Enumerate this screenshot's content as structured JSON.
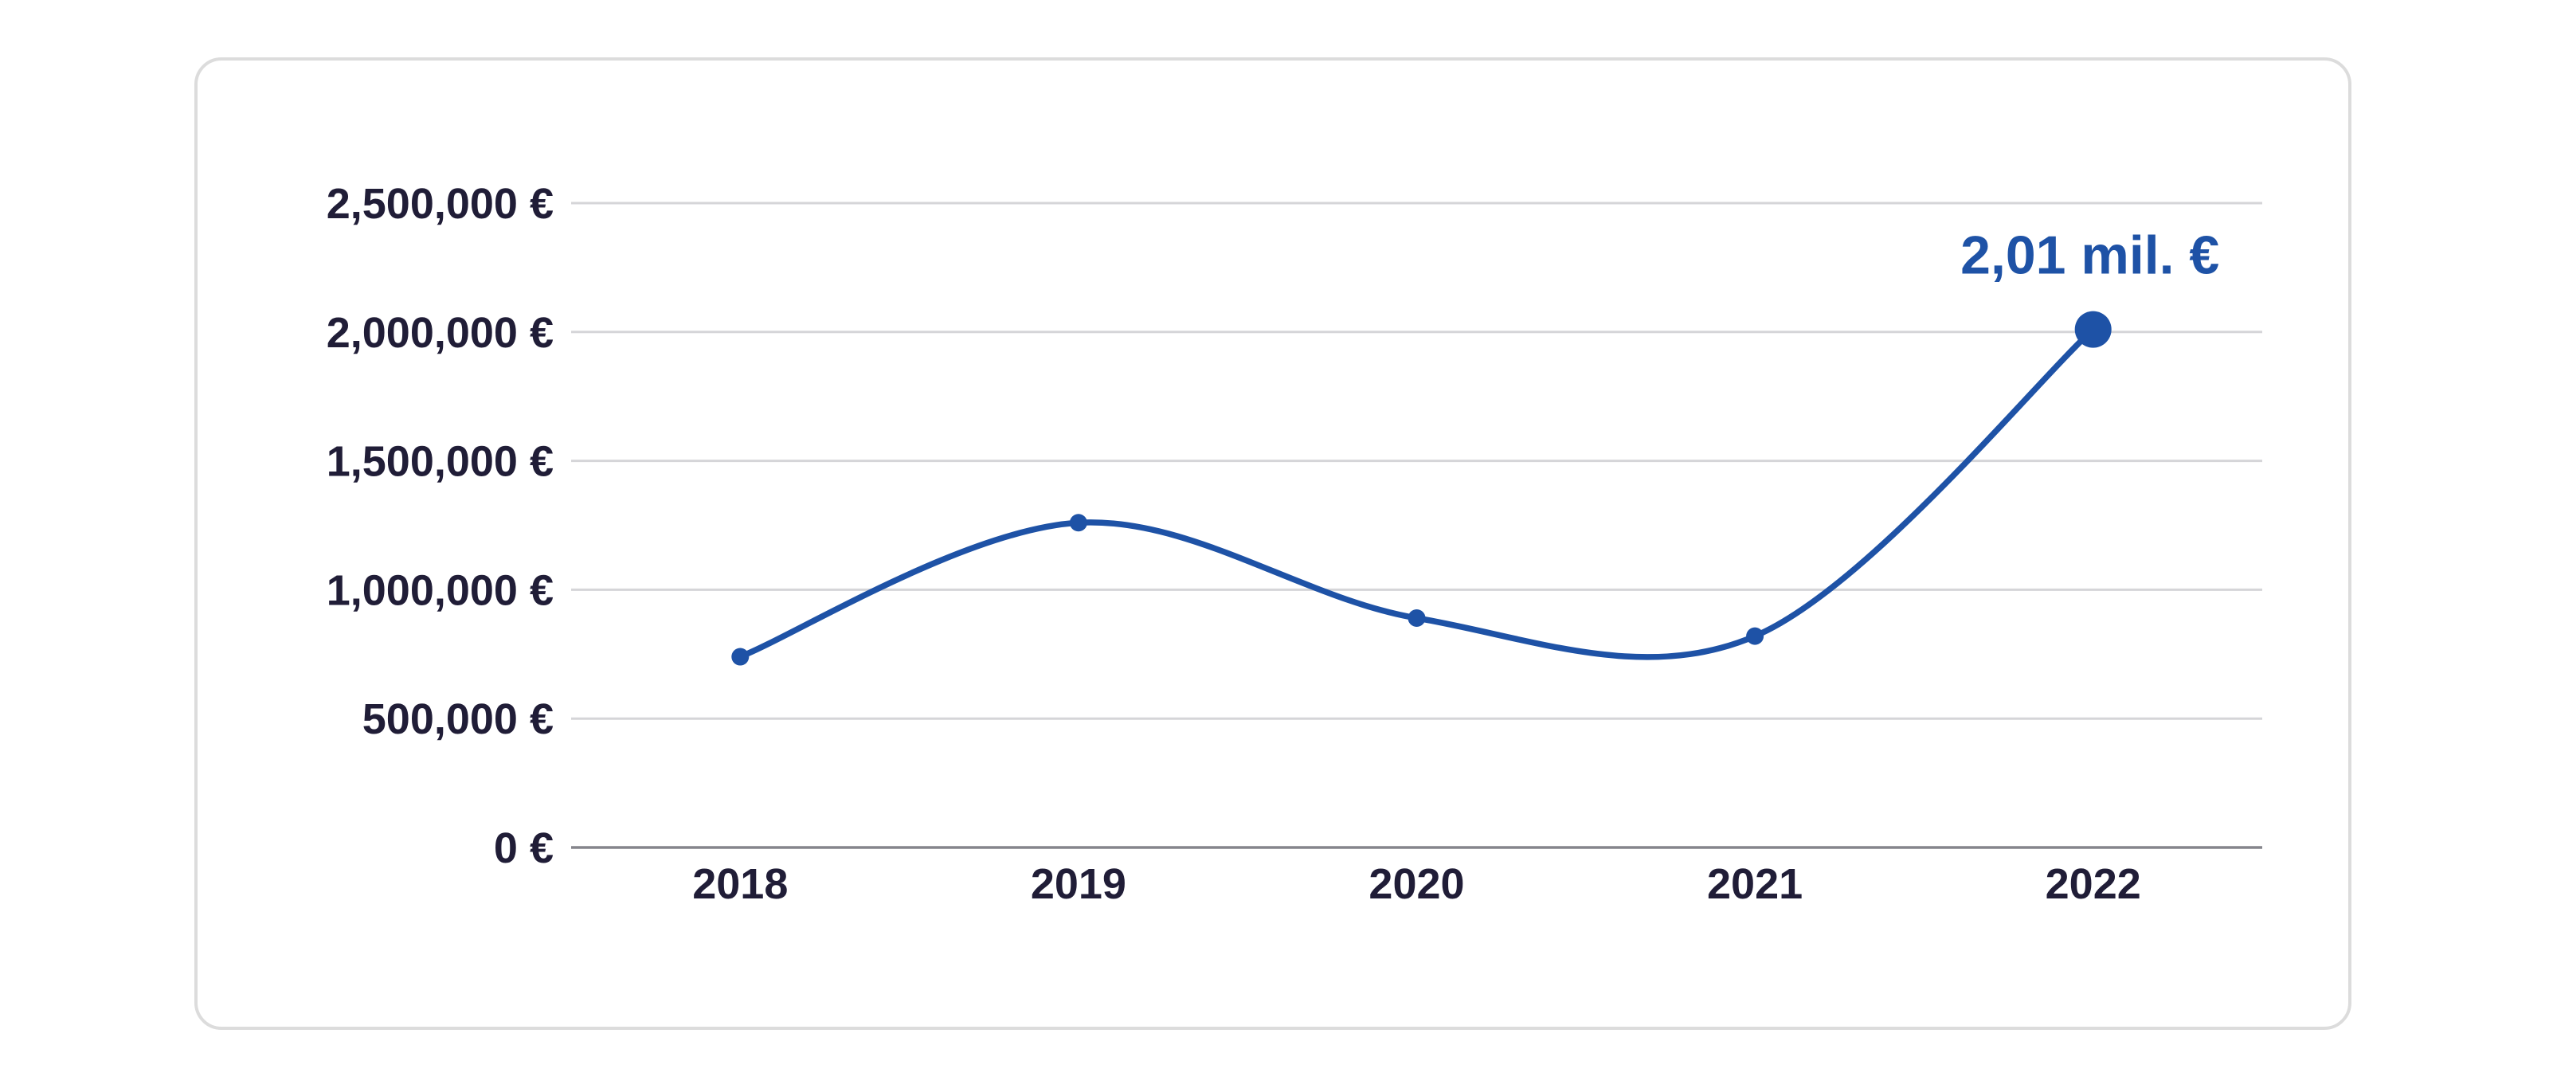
{
  "card": {
    "background": "#ffffff",
    "border_color": "#dcdcdc"
  },
  "chart_data": {
    "type": "line",
    "title": "",
    "xlabel": "",
    "ylabel": "",
    "categories": [
      "2018",
      "2019",
      "2020",
      "2021",
      "2022"
    ],
    "series": [
      {
        "name": "value-eur",
        "values": [
          740000,
          1260000,
          890000,
          820000,
          2010000
        ]
      }
    ],
    "ylim": [
      0,
      2500000
    ],
    "yticks": [
      {
        "value": 0,
        "label": "0 €"
      },
      {
        "value": 500000,
        "label": "500,000 €"
      },
      {
        "value": 1000000,
        "label": "1,000,000 €"
      },
      {
        "value": 1500000,
        "label": "1,500,000 €"
      },
      {
        "value": 2000000,
        "label": "2,000,000 €"
      },
      {
        "value": 2500000,
        "label": "2,500,000 €"
      }
    ],
    "grid": true,
    "legend": false,
    "smooth": true,
    "emphasized_point_index": 4,
    "annotation": {
      "text": "2,01 mil. €",
      "target_category": "2022"
    },
    "colors": {
      "line": "#1e52a6",
      "point": "#1e52a6",
      "annotation_text": "#1e52a6",
      "gridline": "#d5d5d8",
      "axis_line": "#85858c",
      "tick_text": "#201d37"
    }
  }
}
